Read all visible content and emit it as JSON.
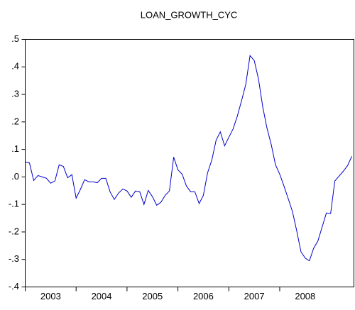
{
  "chart_data": {
    "type": "line",
    "title": "LOAN_GROWTH_CYC",
    "x": [
      2003,
      2003.083,
      2003.167,
      2003.25,
      2003.333,
      2003.417,
      2003.5,
      2003.583,
      2003.667,
      2003.75,
      2003.833,
      2003.917,
      2004,
      2004.083,
      2004.167,
      2004.25,
      2004.333,
      2004.417,
      2004.5,
      2004.583,
      2004.667,
      2004.75,
      2004.833,
      2004.917,
      2005,
      2005.083,
      2005.167,
      2005.25,
      2005.333,
      2005.417,
      2005.5,
      2005.583,
      2005.667,
      2005.75,
      2005.833,
      2005.917,
      2006,
      2006.083,
      2006.167,
      2006.25,
      2006.333,
      2006.417,
      2006.5,
      2006.583,
      2006.667,
      2006.75,
      2006.833,
      2006.917,
      2007,
      2007.083,
      2007.167,
      2007.25,
      2007.333,
      2007.417,
      2007.5,
      2007.583,
      2007.667,
      2007.75,
      2007.833,
      2007.917,
      2008,
      2008.083,
      2008.167,
      2008.25,
      2008.333,
      2008.417,
      2008.5,
      2008.583,
      2008.667,
      2008.75,
      2008.833,
      2008.917,
      2009,
      2009.083,
      2009.167,
      2009.25,
      2009.333,
      2009.417
    ],
    "series": [
      {
        "name": "LOAN_GROWTH_CYC",
        "color": "#0000cc",
        "values": [
          0.054,
          0.051,
          -0.013,
          0.005,
          0,
          -0.005,
          -0.023,
          -0.015,
          0.044,
          0.038,
          -0.003,
          0.008,
          -0.077,
          -0.046,
          -0.01,
          -0.018,
          -0.018,
          -0.021,
          -0.005,
          -0.005,
          -0.054,
          -0.082,
          -0.059,
          -0.044,
          -0.051,
          -0.074,
          -0.051,
          -0.054,
          -0.1,
          -0.049,
          -0.072,
          -0.103,
          -0.092,
          -0.067,
          -0.051,
          0.072,
          0.026,
          0.01,
          -0.033,
          -0.054,
          -0.054,
          -0.097,
          -0.067,
          0.015,
          0.062,
          0.133,
          0.164,
          0.113,
          0.144,
          0.174,
          0.221,
          0.277,
          0.336,
          0.441,
          0.423,
          0.356,
          0.254,
          0.177,
          0.118,
          0.044,
          0.01,
          -0.033,
          -0.079,
          -0.126,
          -0.195,
          -0.272,
          -0.295,
          -0.305,
          -0.259,
          -0.233,
          -0.182,
          -0.131,
          -0.133,
          -0.015,
          0.003,
          0.021,
          0.041,
          0.075
        ]
      }
    ],
    "xlim": [
      2003,
      2009.458
    ],
    "xticks": [
      2003,
      2004,
      2005,
      2006,
      2007,
      2008
    ],
    "ylim": [
      -0.4,
      0.5
    ],
    "yticks": [
      {
        "value": -0.4,
        "label": "-.4"
      },
      {
        "value": -0.3,
        "label": "-.3"
      },
      {
        "value": -0.2,
        "label": "-.2"
      },
      {
        "value": -0.1,
        "label": "-.1"
      },
      {
        "value": 0,
        "label": ".0"
      },
      {
        "value": 0.1,
        "label": ".1"
      },
      {
        "value": 0.2,
        "label": ".2"
      },
      {
        "value": 0.3,
        "label": ".3"
      },
      {
        "value": 0.4,
        "label": ".4"
      },
      {
        "value": 0.5,
        "label": ".5"
      }
    ],
    "grid": false
  }
}
